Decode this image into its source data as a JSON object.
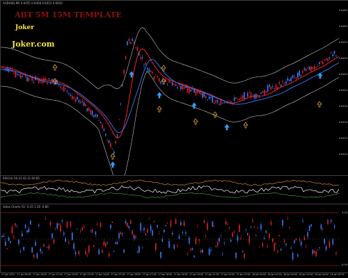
{
  "main_panel": {
    "header": "AUDUSD,M5 0.6455 0.6458 0.6453 0.6456",
    "title": "ABT 5M 15M TEMPLATE",
    "brand": "Joker",
    "site": "Joker.com",
    "price_ticks": [
      "0.6465",
      "0.6460",
      "0.6455",
      "0.6450",
      "0.6445",
      "0.6440",
      "0.6435",
      "0.6430",
      "0.6425",
      "0.6420"
    ],
    "colors": {
      "up": "#3d7bff",
      "down": "#e0202a",
      "ma_red": "#e0202a",
      "ma_blue": "#3d7bff",
      "bands": "#c8c8c8",
      "arrow_up_cyan": "#32a0ff",
      "arrow_up_orange": "#f2b234"
    }
  },
  "osc_panel": {
    "header": "RSI(14) 56.23 42.11 60.85"
  },
  "value_panel": {
    "header": "Value Charts (5) -0.35 1.20 -0.80",
    "level_top": "4.00",
    "level_bottom": "-4.00"
  },
  "time_labels": [
    "17 Jan 2023",
    "17 Jan 09:00",
    "17 Jan 10:00",
    "17 Jan 11:00",
    "17 Jan 12:00",
    "17 Jan 13:00",
    "17 Jan 14:00",
    "17 Jan 15:00",
    "17 Jan 16:00",
    "17 Jan 17:00",
    "17 Jan 18:00",
    "17 Jan 19:00",
    "17 Jan 20:00",
    "17 Jan 21:00",
    "17 Jan 22:00",
    "17 Jan 23:00",
    "18 Jan 00:00",
    "18 Jan 01:00",
    "18 Jan 02:00",
    "18 Jan 03:00",
    "18 Jan 04:00",
    "18 Jan 05:00"
  ]
}
